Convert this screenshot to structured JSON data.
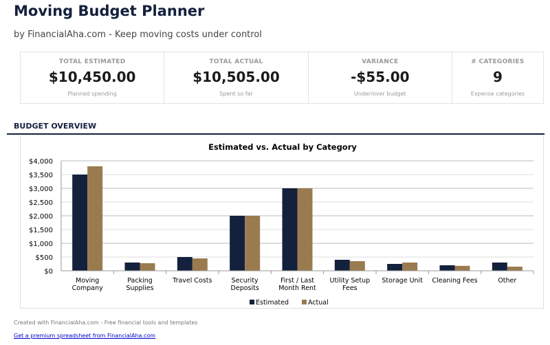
{
  "header": {
    "title": "Moving Budget Planner",
    "subtitle": "by FinancialAha.com - Keep moving costs under control"
  },
  "cards": [
    {
      "label": "TOTAL ESTIMATED",
      "value": "$10,450.00",
      "sub": "Planned spending"
    },
    {
      "label": "TOTAL ACTUAL",
      "value": "$10,505.00",
      "sub": "Spent so far"
    },
    {
      "label": "VARIANCE",
      "value": "-$55.00",
      "sub": "Under/over budget"
    },
    {
      "label": "# CATEGORIES",
      "value": "9",
      "sub": "Expense categories"
    }
  ],
  "section_title": "BUDGET OVERVIEW",
  "chart_data": {
    "type": "bar",
    "title": "Estimated vs. Actual by Category",
    "categories": [
      [
        "Moving",
        "Company"
      ],
      [
        "Packing",
        "Supplies"
      ],
      [
        "Travel Costs"
      ],
      [
        "Security",
        "Deposits"
      ],
      [
        "First / Last",
        "Month Rent"
      ],
      [
        "Utility Setup",
        "Fees"
      ],
      [
        "Storage Unit"
      ],
      [
        "Cleaning Fees"
      ],
      [
        "Other"
      ]
    ],
    "series": [
      {
        "name": "Estimated",
        "color": "#14213d",
        "values": [
          3500,
          300,
          500,
          2000,
          3000,
          400,
          250,
          200,
          300
        ]
      },
      {
        "name": "Actual",
        "color": "#9a7b4f",
        "values": [
          3800,
          275,
          450,
          2000,
          3000,
          350,
          300,
          180,
          150
        ]
      }
    ],
    "ylim": [
      0,
      4000
    ],
    "yticks": [
      "$0",
      "$500",
      "$1,000",
      "$1,500",
      "$2,000",
      "$2,500",
      "$3,000",
      "$3,500",
      "$4,000"
    ],
    "grid": true,
    "legend": "bottom"
  },
  "footer": {
    "text": "Created with FinancialAha.com - Free financial tools and templates",
    "link": "Get a premium spreadsheet from FinancialAha.com"
  }
}
